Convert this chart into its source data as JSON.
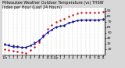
{
  "title": "Milwaukee Weather Outdoor Temperature (vs) THSW Index per Hour (Last 24 Hours)",
  "title_fontsize": 3.5,
  "background_color": "#d8d8d8",
  "plot_background": "#ffffff",
  "grid_color": "#aaaaaa",
  "hours": [
    0,
    1,
    2,
    3,
    4,
    5,
    6,
    7,
    8,
    9,
    10,
    11,
    12,
    13,
    14,
    15,
    16,
    17,
    18,
    19,
    20,
    21,
    22,
    23
  ],
  "outdoor_temp": [
    28,
    26,
    24,
    24,
    23,
    23,
    26,
    30,
    35,
    42,
    50,
    55,
    60,
    62,
    63,
    68,
    70,
    72,
    73,
    73,
    73,
    73,
    73,
    74
  ],
  "thsw_index": [
    20,
    18,
    16,
    15,
    14,
    13,
    18,
    24,
    33,
    45,
    57,
    64,
    70,
    73,
    75,
    80,
    83,
    86,
    87,
    87,
    87,
    87,
    87,
    88
  ],
  "heat_index": [
    30,
    28,
    26,
    25,
    24,
    24,
    27,
    32,
    37,
    44,
    51,
    56,
    61,
    63,
    64,
    69,
    71,
    73,
    74,
    74,
    74,
    74,
    74,
    75
  ],
  "outdoor_temp_color": "#0000dd",
  "thsw_color": "#dd0000",
  "heat_index_color": "#222222",
  "ylim_min": 10,
  "ylim_max": 95,
  "ylabel_ticks": [
    20,
    30,
    40,
    50,
    60,
    70,
    80,
    90
  ],
  "tick_fontsize": 3.2,
  "xlabel_fontsize": 2.8,
  "x_tick_labels": [
    "12a",
    "1",
    "2",
    "3",
    "4",
    "5",
    "6",
    "7",
    "8",
    "9",
    "10",
    "11",
    "12p",
    "1",
    "2",
    "3",
    "4",
    "5",
    "6",
    "7",
    "8",
    "9",
    "10",
    "11"
  ]
}
